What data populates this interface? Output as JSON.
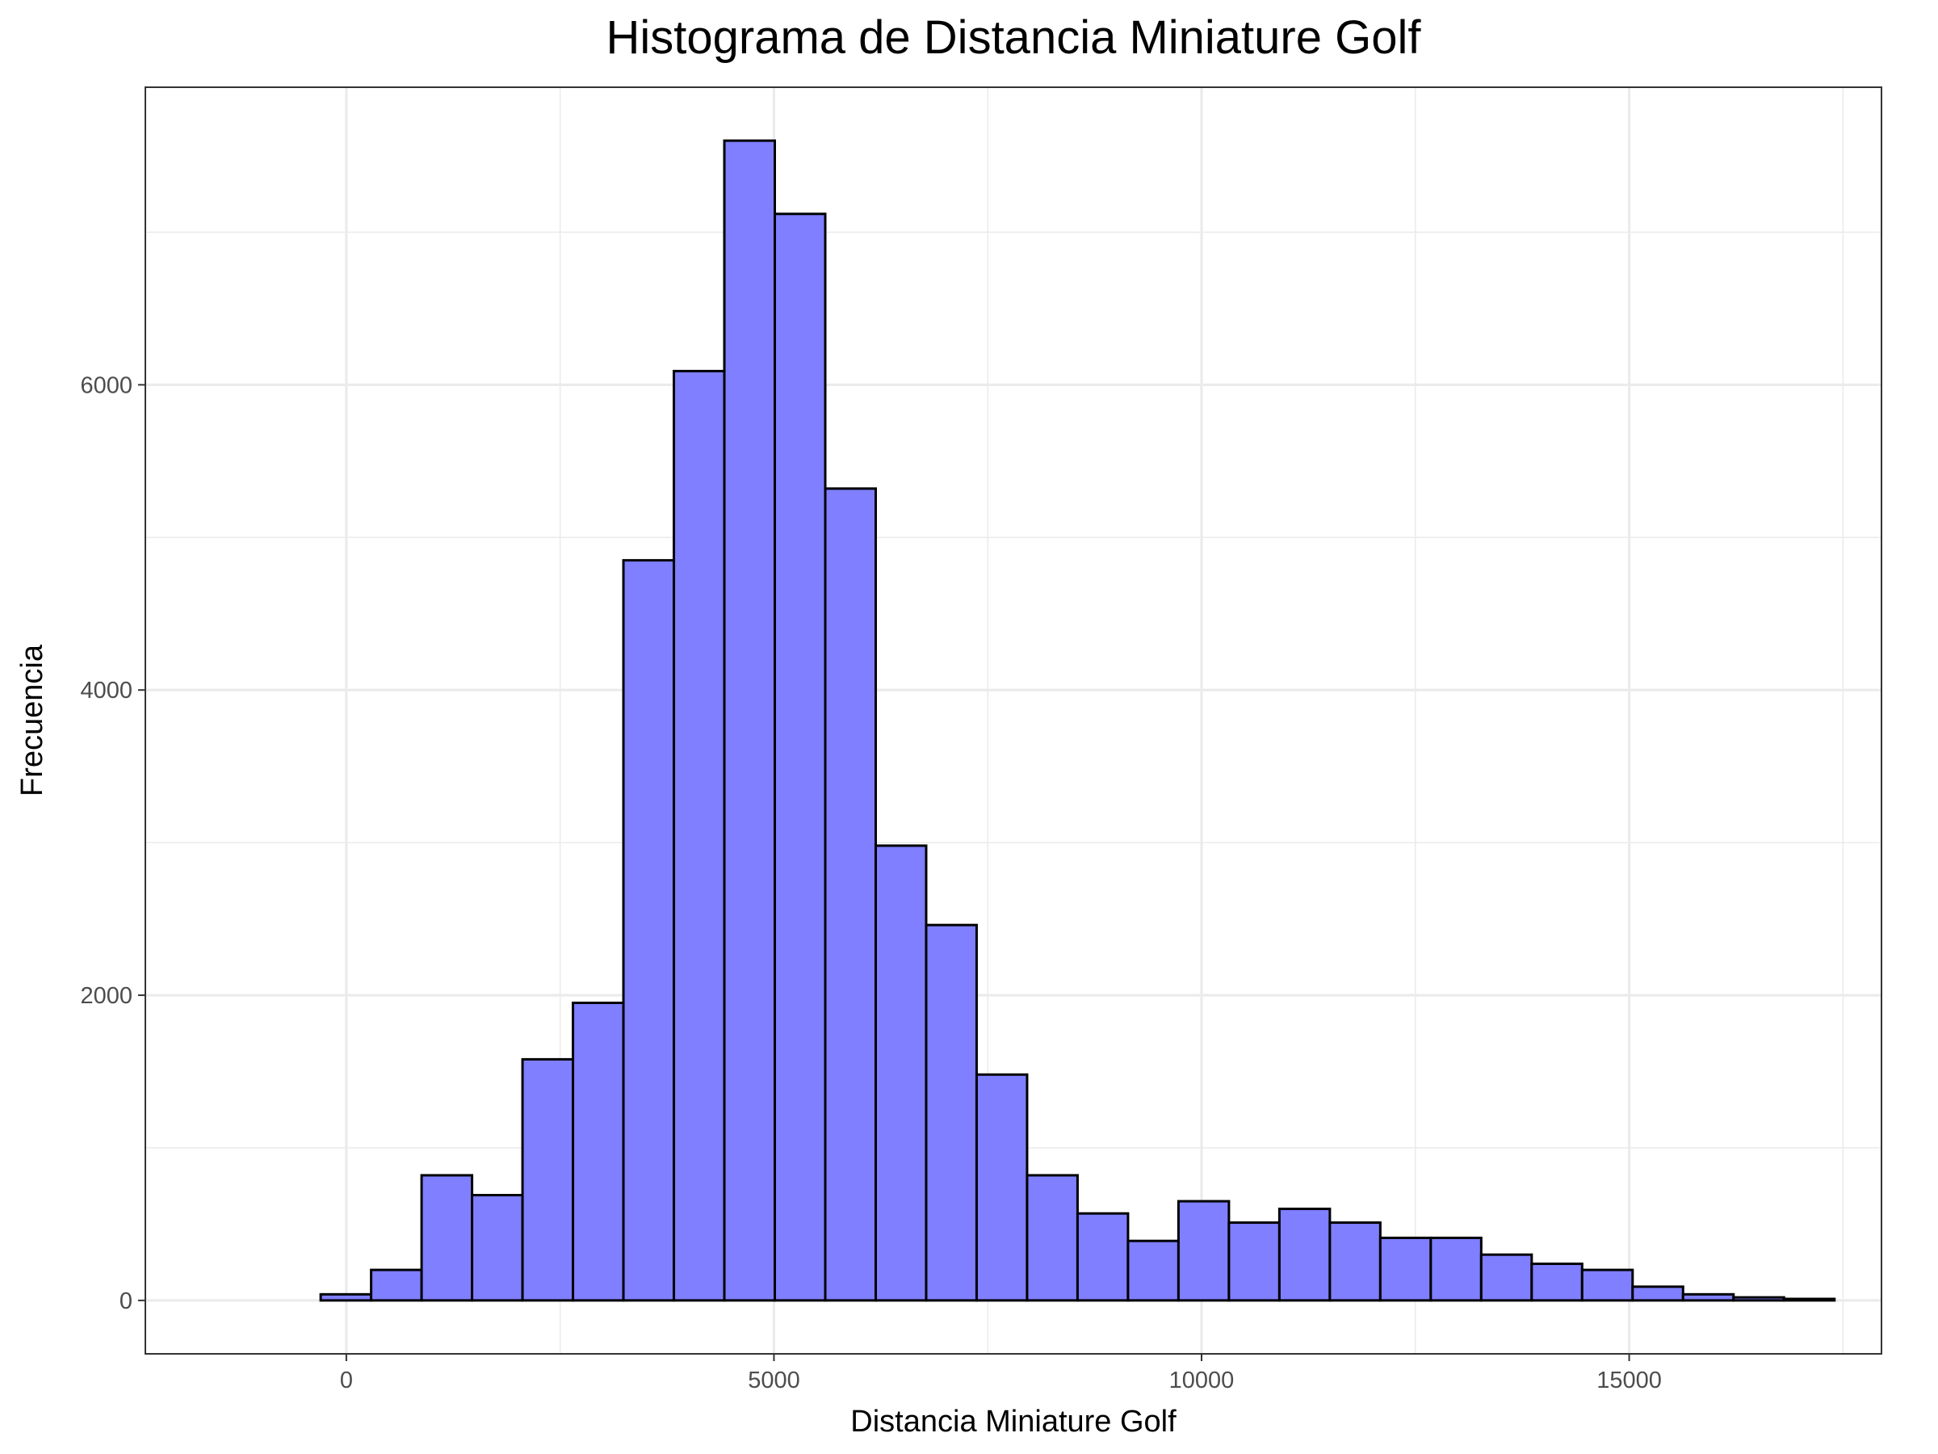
{
  "chart_data": {
    "type": "histogram",
    "title": "Histograma de Distancia Miniature Golf",
    "xlabel": "Distancia Miniature Golf",
    "ylabel": "Frecuencia",
    "xlim": [
      -2350,
      17950
    ],
    "ylim": [
      -350,
      7950
    ],
    "x_ticks": [
      0,
      5000,
      10000,
      15000
    ],
    "x_tick_labels": [
      "0",
      "5000",
      "10000",
      "15000"
    ],
    "y_ticks": [
      0,
      2000,
      4000,
      6000
    ],
    "y_tick_labels": [
      "0",
      "2000",
      "4000",
      "6000"
    ],
    "x_minor_ticks": [
      2500,
      7500,
      12500,
      17500
    ],
    "y_minor_ticks": [
      1000,
      3000,
      5000,
      7000
    ],
    "grid": true,
    "bar_fill": "#7f7fff",
    "bar_outline": "#000000",
    "bins": [
      {
        "x0": -300,
        "x1": 290,
        "count": 40
      },
      {
        "x0": 290,
        "x1": 880,
        "count": 200
      },
      {
        "x0": 880,
        "x1": 1470,
        "count": 820
      },
      {
        "x0": 1470,
        "x1": 2060,
        "count": 690
      },
      {
        "x0": 2060,
        "x1": 2650,
        "count": 1580
      },
      {
        "x0": 2650,
        "x1": 3240,
        "count": 1950
      },
      {
        "x0": 3240,
        "x1": 3830,
        "count": 4850
      },
      {
        "x0": 3830,
        "x1": 4420,
        "count": 6090
      },
      {
        "x0": 4420,
        "x1": 5010,
        "count": 7600
      },
      {
        "x0": 5010,
        "x1": 5600,
        "count": 7120
      },
      {
        "x0": 5600,
        "x1": 6190,
        "count": 5320
      },
      {
        "x0": 6190,
        "x1": 6780,
        "count": 2980
      },
      {
        "x0": 6780,
        "x1": 7370,
        "count": 2460
      },
      {
        "x0": 7370,
        "x1": 7960,
        "count": 1480
      },
      {
        "x0": 7960,
        "x1": 8550,
        "count": 820
      },
      {
        "x0": 8550,
        "x1": 9140,
        "count": 570
      },
      {
        "x0": 9140,
        "x1": 9730,
        "count": 390
      },
      {
        "x0": 9730,
        "x1": 10320,
        "count": 650
      },
      {
        "x0": 10320,
        "x1": 10910,
        "count": 510
      },
      {
        "x0": 10910,
        "x1": 11500,
        "count": 600
      },
      {
        "x0": 11500,
        "x1": 12090,
        "count": 510
      },
      {
        "x0": 12090,
        "x1": 12680,
        "count": 410
      },
      {
        "x0": 12680,
        "x1": 13270,
        "count": 410
      },
      {
        "x0": 13270,
        "x1": 13860,
        "count": 300
      },
      {
        "x0": 13860,
        "x1": 14450,
        "count": 240
      },
      {
        "x0": 14450,
        "x1": 15040,
        "count": 200
      },
      {
        "x0": 15040,
        "x1": 15630,
        "count": 90
      },
      {
        "x0": 15630,
        "x1": 16220,
        "count": 40
      },
      {
        "x0": 16220,
        "x1": 16810,
        "count": 20
      },
      {
        "x0": 16810,
        "x1": 17400,
        "count": 10
      }
    ]
  }
}
